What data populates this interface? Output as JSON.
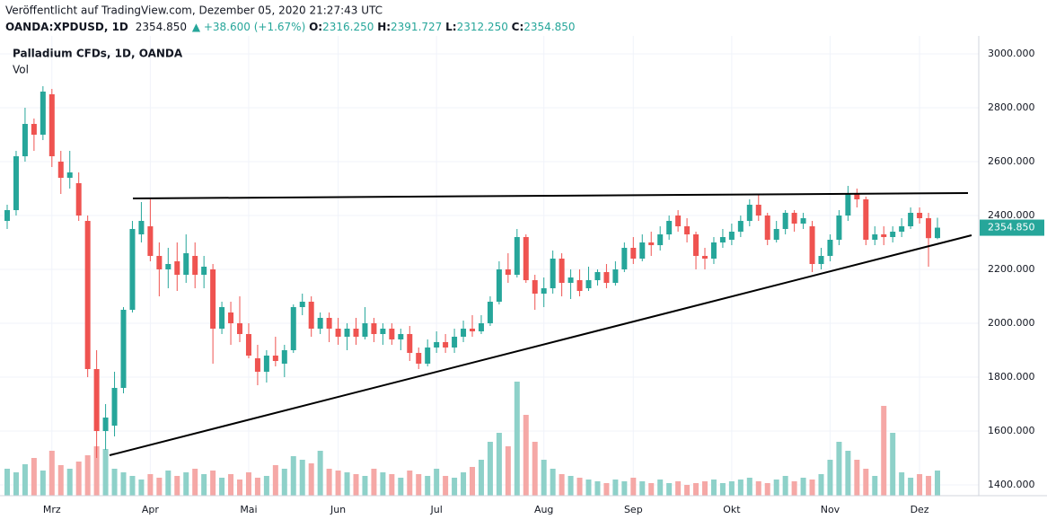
{
  "header": {
    "published": "Veröffentlicht auf TradingView.com, Dezember 05, 2020 21:27:43 UTC",
    "symbol": "OANDA:XPDUSD, 1D",
    "last": "2354.850",
    "change": "▲ +38.600 (+1.67%)",
    "o_label": "O:",
    "o": "2316.250",
    "h_label": "H:",
    "h": "2391.727",
    "l_label": "L:",
    "l": "2312.250",
    "c_label": "C:",
    "c": "2354.850"
  },
  "chart_data": {
    "type": "candlestick",
    "title": "Palladium CFDs, 1D, OANDA",
    "volume_label": "Vol",
    "up_color": "#26a69a",
    "down_color": "#ef5350",
    "volume_up_color": "#8ed1c9",
    "volume_down_color": "#f5a8a6",
    "grid": true,
    "categories": [
      null,
      null,
      null,
      null,
      null,
      "Mrz",
      null,
      null,
      null,
      null,
      null,
      null,
      null,
      null,
      null,
      null,
      "Apr",
      null,
      null,
      null,
      null,
      null,
      null,
      null,
      null,
      null,
      null,
      "Mai",
      null,
      null,
      null,
      null,
      null,
      null,
      null,
      null,
      null,
      "Jun",
      null,
      null,
      null,
      null,
      null,
      null,
      null,
      null,
      null,
      null,
      "Jul",
      null,
      null,
      null,
      null,
      null,
      null,
      null,
      null,
      null,
      null,
      null,
      "Aug",
      null,
      null,
      null,
      null,
      null,
      null,
      null,
      null,
      null,
      "Sep",
      null,
      null,
      null,
      null,
      null,
      null,
      null,
      null,
      null,
      null,
      "Okt",
      null,
      null,
      null,
      null,
      null,
      null,
      null,
      null,
      null,
      null,
      "Nov",
      null,
      null,
      null,
      null,
      null,
      null,
      null,
      null,
      null,
      "Dez",
      null,
      null
    ],
    "open": [
      2380,
      2420,
      2620,
      2740,
      2700,
      2850,
      2600,
      2540,
      2520,
      2380,
      1830,
      1600,
      1620,
      1760,
      2050,
      2330,
      2360,
      2250,
      2200,
      2230,
      2180,
      2250,
      2180,
      2200,
      1980,
      2040,
      2000,
      1960,
      1870,
      1820,
      1880,
      1850,
      1900,
      2060,
      2080,
      1980,
      2020,
      1980,
      1950,
      1980,
      1950,
      2000,
      1960,
      1980,
      1940,
      1960,
      1890,
      1850,
      1910,
      1930,
      1910,
      1950,
      1980,
      1970,
      2000,
      2080,
      2200,
      2180,
      2320,
      2160,
      2110,
      2130,
      2240,
      2150,
      2160,
      2130,
      2160,
      2190,
      2150,
      2200,
      2280,
      2240,
      2300,
      2290,
      2330,
      2400,
      2360,
      2330,
      2250,
      2240,
      2300,
      2310,
      2340,
      2380,
      2440,
      2400,
      2310,
      2350,
      2410,
      2370,
      2360,
      2220,
      2250,
      2310,
      2400,
      2480,
      2460,
      2310,
      2330,
      2320,
      2340,
      2360,
      2410,
      2390,
      2316.25
    ],
    "high": [
      2440,
      2640,
      2800,
      2760,
      2880,
      2870,
      2640,
      2640,
      2560,
      2400,
      1900,
      1700,
      1820,
      2060,
      2380,
      2450,
      2460,
      2300,
      2280,
      2300,
      2330,
      2300,
      2250,
      2220,
      2080,
      2080,
      2100,
      2000,
      1920,
      1900,
      1950,
      1920,
      2070,
      2110,
      2100,
      2040,
      2040,
      2020,
      2000,
      2020,
      2060,
      2020,
      2000,
      2000,
      1980,
      1990,
      1910,
      1940,
      1970,
      1960,
      1980,
      2010,
      2030,
      2030,
      2100,
      2230,
      2260,
      2350,
      2330,
      2180,
      2170,
      2270,
      2260,
      2200,
      2200,
      2210,
      2200,
      2220,
      2230,
      2300,
      2320,
      2330,
      2340,
      2360,
      2400,
      2420,
      2390,
      2340,
      2280,
      2320,
      2350,
      2370,
      2400,
      2460,
      2480,
      2410,
      2380,
      2420,
      2420,
      2410,
      2380,
      2280,
      2330,
      2420,
      2510,
      2500,
      2470,
      2360,
      2360,
      2360,
      2390,
      2430,
      2430,
      2410,
      2391.727
    ],
    "low": [
      2350,
      2400,
      2600,
      2640,
      2680,
      2580,
      2480,
      2500,
      2380,
      1800,
      1500,
      1530,
      1580,
      1740,
      2040,
      2300,
      2230,
      2100,
      2130,
      2120,
      2150,
      2130,
      2130,
      1850,
      1960,
      1920,
      1930,
      1870,
      1770,
      1780,
      1840,
      1800,
      1890,
      2030,
      1950,
      1960,
      1930,
      1920,
      1900,
      1920,
      1940,
      1930,
      1920,
      1920,
      1900,
      1860,
      1830,
      1840,
      1890,
      1890,
      1890,
      1930,
      1950,
      1960,
      1990,
      2070,
      2150,
      2170,
      2150,
      2050,
      2060,
      2110,
      2100,
      2090,
      2100,
      2120,
      2140,
      2130,
      2140,
      2190,
      2220,
      2230,
      2250,
      2270,
      2310,
      2340,
      2300,
      2200,
      2200,
      2220,
      2280,
      2290,
      2320,
      2360,
      2380,
      2290,
      2300,
      2330,
      2340,
      2350,
      2190,
      2200,
      2230,
      2290,
      2380,
      2430,
      2290,
      2290,
      2290,
      2300,
      2320,
      2350,
      2370,
      2210,
      2312.25
    ],
    "close": [
      2420,
      2620,
      2740,
      2700,
      2860,
      2620,
      2540,
      2560,
      2400,
      1830,
      1600,
      1650,
      1760,
      2050,
      2350,
      2380,
      2250,
      2200,
      2220,
      2180,
      2260,
      2180,
      2210,
      1980,
      2060,
      2000,
      1960,
      1880,
      1820,
      1880,
      1860,
      1900,
      2060,
      2080,
      1980,
      2020,
      1980,
      1950,
      1980,
      1950,
      2000,
      1960,
      1980,
      1940,
      1960,
      1890,
      1850,
      1910,
      1930,
      1910,
      1950,
      1980,
      1970,
      2000,
      2080,
      2200,
      2180,
      2320,
      2160,
      2110,
      2130,
      2240,
      2150,
      2170,
      2120,
      2160,
      2190,
      2150,
      2200,
      2280,
      2240,
      2300,
      2290,
      2330,
      2380,
      2360,
      2330,
      2250,
      2240,
      2300,
      2320,
      2340,
      2380,
      2440,
      2400,
      2310,
      2350,
      2410,
      2370,
      2390,
      2220,
      2250,
      2310,
      2400,
      2480,
      2460,
      2310,
      2330,
      2320,
      2340,
      2360,
      2410,
      2390,
      2316,
      2354.85
    ],
    "volume": [
      30,
      26,
      35,
      42,
      28,
      50,
      34,
      30,
      38,
      45,
      55,
      52,
      30,
      26,
      22,
      18,
      24,
      20,
      28,
      22,
      26,
      30,
      24,
      28,
      20,
      24,
      18,
      26,
      20,
      22,
      34,
      30,
      44,
      40,
      36,
      50,
      30,
      28,
      26,
      24,
      22,
      30,
      26,
      24,
      20,
      28,
      24,
      22,
      30,
      22,
      20,
      26,
      32,
      40,
      60,
      70,
      55,
      127,
      90,
      60,
      40,
      30,
      24,
      22,
      20,
      18,
      16,
      14,
      18,
      16,
      20,
      16,
      14,
      18,
      14,
      16,
      12,
      14,
      16,
      18,
      14,
      16,
      18,
      20,
      16,
      14,
      18,
      22,
      16,
      20,
      18,
      24,
      40,
      60,
      50,
      40,
      30,
      22,
      100,
      70,
      26,
      20,
      24,
      22,
      28
    ],
    "ylim": [
      1360,
      3066.7
    ],
    "yticks": [
      {
        "value": 1400,
        "label": "1400.000"
      },
      {
        "value": 1600,
        "label": "1600.000"
      },
      {
        "value": 1800,
        "label": "1800.000"
      },
      {
        "value": 2000,
        "label": "2000.000"
      },
      {
        "value": 2200,
        "label": "2200.000"
      },
      {
        "value": 2400,
        "label": "2400.000"
      },
      {
        "value": 2600,
        "label": "2600.000"
      },
      {
        "value": 2800,
        "label": "2800.000"
      },
      {
        "value": 3000,
        "label": "3000.000"
      }
    ]
  }
}
